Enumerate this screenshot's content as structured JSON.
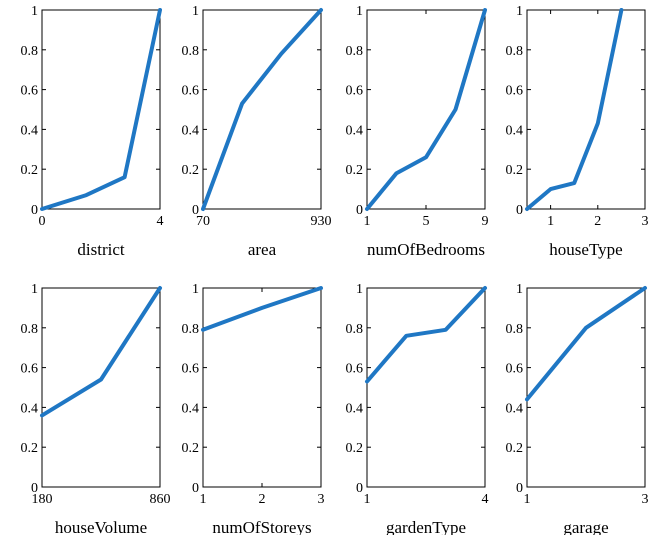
{
  "chart_data": [
    {
      "type": "line",
      "xlabel": "district",
      "xlim": [
        0,
        4
      ],
      "ylim": [
        0,
        1
      ],
      "xticks": [
        0,
        4
      ],
      "xtick_labels": [
        "0",
        "4"
      ],
      "yticks": [
        0,
        0.2,
        0.4,
        0.6,
        0.8,
        1
      ],
      "ytick_labels": [
        "0",
        "0.2",
        "0.4",
        "0.6",
        "0.8",
        "1"
      ],
      "x": [
        0,
        1.5,
        2.8,
        4
      ],
      "y": [
        0,
        0.07,
        0.16,
        1
      ]
    },
    {
      "type": "line",
      "xlabel": "area",
      "xlim": [
        70,
        930
      ],
      "ylim": [
        0,
        1
      ],
      "xticks": [
        70,
        930
      ],
      "xtick_labels": [
        "70",
        "930"
      ],
      "yticks": [
        0,
        0.2,
        0.4,
        0.6,
        0.8,
        1
      ],
      "ytick_labels": [
        "0",
        "0.2",
        "0.4",
        "0.6",
        "0.8",
        "1"
      ],
      "x": [
        70,
        355,
        640,
        930
      ],
      "y": [
        0,
        0.53,
        0.78,
        1
      ]
    },
    {
      "type": "line",
      "xlabel": "numOfBedrooms",
      "xlim": [
        1,
        9
      ],
      "ylim": [
        0,
        1
      ],
      "xticks": [
        1,
        5,
        9
      ],
      "xtick_labels": [
        "1",
        "5",
        "9"
      ],
      "yticks": [
        0,
        0.2,
        0.4,
        0.6,
        0.8,
        1
      ],
      "ytick_labels": [
        "0",
        "0.2",
        "0.4",
        "0.6",
        "0.8",
        "1"
      ],
      "x": [
        1,
        3,
        5,
        7,
        9
      ],
      "y": [
        0,
        0.18,
        0.26,
        0.5,
        1
      ]
    },
    {
      "type": "line",
      "xlabel": "houseType",
      "xlim": [
        0.5,
        3
      ],
      "ylim": [
        0,
        1
      ],
      "xticks": [
        1,
        2,
        3
      ],
      "xtick_labels": [
        "1",
        "2",
        "3"
      ],
      "yticks": [
        0,
        0.2,
        0.4,
        0.6,
        0.8,
        1
      ],
      "ytick_labels": [
        "0",
        "0.2",
        "0.4",
        "0.6",
        "0.8",
        "1"
      ],
      "x": [
        0.5,
        1,
        1.5,
        2,
        2.5
      ],
      "y": [
        0,
        0.1,
        0.13,
        0.43,
        1
      ]
    },
    {
      "type": "line",
      "xlabel": "houseVolume",
      "xlim": [
        180,
        860
      ],
      "ylim": [
        0,
        1
      ],
      "xticks": [
        180,
        860
      ],
      "xtick_labels": [
        "180",
        "860"
      ],
      "yticks": [
        0,
        0.2,
        0.4,
        0.6,
        0.8,
        1
      ],
      "ytick_labels": [
        "0",
        "0.2",
        "0.4",
        "0.6",
        "0.8",
        "1"
      ],
      "x": [
        180,
        520,
        860
      ],
      "y": [
        0.36,
        0.54,
        1
      ]
    },
    {
      "type": "line",
      "xlabel": "numOfStoreys",
      "xlim": [
        1,
        3
      ],
      "ylim": [
        0,
        1
      ],
      "xticks": [
        1,
        2,
        3
      ],
      "xtick_labels": [
        "1",
        "2",
        "3"
      ],
      "yticks": [
        0,
        0.2,
        0.4,
        0.6,
        0.8,
        1
      ],
      "ytick_labels": [
        "0",
        "0.2",
        "0.4",
        "0.6",
        "0.8",
        "1"
      ],
      "x": [
        1,
        2,
        3
      ],
      "y": [
        0.79,
        0.9,
        1
      ]
    },
    {
      "type": "line",
      "xlabel": "gardenType",
      "xlim": [
        1,
        4
      ],
      "ylim": [
        0,
        1
      ],
      "xticks": [
        1,
        4
      ],
      "xtick_labels": [
        "1",
        "4"
      ],
      "yticks": [
        0,
        0.2,
        0.4,
        0.6,
        0.8,
        1
      ],
      "ytick_labels": [
        "0",
        "0.2",
        "0.4",
        "0.6",
        "0.8",
        "1"
      ],
      "x": [
        1,
        2,
        3,
        4
      ],
      "y": [
        0.53,
        0.76,
        0.79,
        1
      ]
    },
    {
      "type": "line",
      "xlabel": "garage",
      "xlim": [
        1,
        3
      ],
      "ylim": [
        0,
        1
      ],
      "xticks": [
        1,
        3
      ],
      "xtick_labels": [
        "1",
        "3"
      ],
      "yticks": [
        0,
        0.2,
        0.4,
        0.6,
        0.8,
        1
      ],
      "ytick_labels": [
        "0",
        "0.2",
        "0.4",
        "0.6",
        "0.8",
        "1"
      ],
      "x": [
        1,
        2,
        3
      ],
      "y": [
        0.44,
        0.8,
        1
      ]
    }
  ],
  "colors": {
    "series": "#1f77c4",
    "axis": "#000000"
  }
}
